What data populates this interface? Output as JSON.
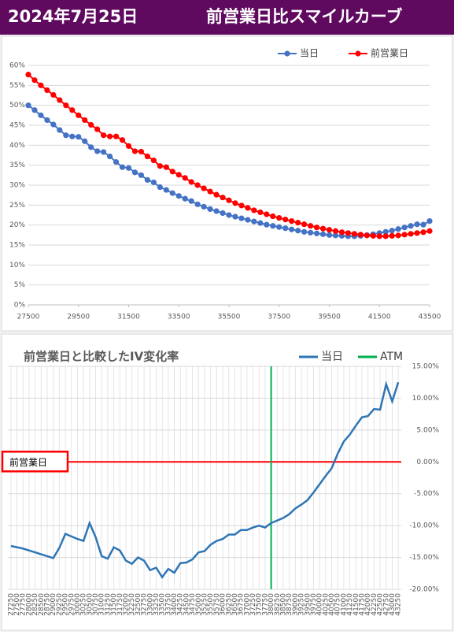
{
  "header": {
    "date": "2024年7月25日",
    "title": "前営業日比スマイルカーブ"
  },
  "chart_data": [
    {
      "type": "line",
      "markers": true,
      "legend": "top-right",
      "grid": true,
      "y_axis_side": "left",
      "x": [
        27500,
        27750,
        28000,
        28250,
        28500,
        28750,
        29000,
        29250,
        29500,
        29750,
        30000,
        30250,
        30500,
        30750,
        31000,
        31250,
        31500,
        31750,
        32000,
        32250,
        32500,
        32750,
        33000,
        33250,
        33500,
        33750,
        34000,
        34250,
        34500,
        34750,
        35000,
        35250,
        35500,
        35750,
        36000,
        36250,
        36500,
        36750,
        37000,
        37250,
        37500,
        37750,
        38000,
        38250,
        38500,
        38750,
        39000,
        39250,
        39500,
        39750,
        40000,
        40250,
        40500,
        40750,
        41000,
        41250,
        41500,
        41750,
        42000,
        42250,
        42500,
        42750,
        43000,
        43250,
        43500
      ],
      "series": [
        {
          "name": "当日",
          "color": "#4472c4",
          "values": [
            50,
            48.8,
            47.5,
            46.3,
            45.2,
            43.8,
            42.5,
            42.2,
            42.1,
            41,
            39.5,
            38.5,
            38.3,
            37.2,
            35.8,
            34.5,
            34.3,
            33.2,
            32.5,
            31.3,
            30.7,
            29.5,
            28.8,
            28,
            27.3,
            26.6,
            26,
            25.2,
            24.6,
            24,
            23.5,
            23,
            22.5,
            22.1,
            21.7,
            21.3,
            20.9,
            20.5,
            20.1,
            19.8,
            19.5,
            19.2,
            18.9,
            18.6,
            18.3,
            18.1,
            17.9,
            17.7,
            17.5,
            17.4,
            17.3,
            17.2,
            17.2,
            17.3,
            17.5,
            17.7,
            18,
            18.3,
            18.6,
            19,
            19.4,
            19.8,
            20.2,
            20.1,
            21
          ]
        },
        {
          "name": "前営業日",
          "color": "#ff0000",
          "values": [
            57.7,
            56.3,
            55,
            53.8,
            52.6,
            51.3,
            50,
            48.8,
            47.5,
            46.3,
            45.1,
            44,
            42.5,
            42.2,
            42.2,
            41.3,
            39.8,
            38.5,
            38.4,
            37.2,
            36.2,
            34.8,
            34.5,
            33.4,
            32.6,
            31.8,
            30.8,
            30,
            29.2,
            28.4,
            27.6,
            26.9,
            26.2,
            25.5,
            24.9,
            24.3,
            23.7,
            23.2,
            22.7,
            22.2,
            21.8,
            21.4,
            21,
            20.6,
            20.2,
            19.8,
            19.4,
            19.1,
            18.8,
            18.5,
            18.2,
            18,
            17.8,
            17.6,
            17.4,
            17.3,
            17.2,
            17.2,
            17.3,
            17.4,
            17.6,
            17.8,
            18,
            18.2,
            18.5
          ]
        }
      ],
      "xlim": [
        27500,
        43500
      ],
      "xticks": [
        27500,
        29500,
        31500,
        33500,
        35500,
        37500,
        39500,
        41500,
        43500
      ],
      "ylim": [
        0,
        60
      ],
      "yticks": [
        {
          "value": 0,
          "label": "0%"
        },
        {
          "value": 5,
          "label": "5%"
        },
        {
          "value": 10,
          "label": "10%"
        },
        {
          "value": 15,
          "label": "15%"
        },
        {
          "value": 20,
          "label": "20%"
        },
        {
          "value": 25,
          "label": "25%"
        },
        {
          "value": 30,
          "label": "30%"
        },
        {
          "value": 35,
          "label": "35%"
        },
        {
          "value": 40,
          "label": "40%"
        },
        {
          "value": 45,
          "label": "45%"
        },
        {
          "value": 50,
          "label": "50%"
        },
        {
          "value": 55,
          "label": "55%"
        },
        {
          "value": 60,
          "label": "60%"
        }
      ]
    },
    {
      "type": "line",
      "markers": false,
      "legend": "top-right",
      "grid": true,
      "y_axis_side": "right",
      "title": "前営業日と比較したIV変化率",
      "categories": [
        "27250",
        "27500",
        "27750",
        "28000",
        "28250",
        "28500",
        "28750",
        "29000",
        "29250",
        "29500",
        "29750",
        "30000",
        "30250",
        "30500",
        "30750",
        "31000",
        "31250",
        "31500",
        "31750",
        "32000",
        "32250",
        "32500",
        "32750",
        "33000",
        "33250",
        "33500",
        "33750",
        "34000",
        "34250",
        "34500",
        "34750",
        "35000",
        "35250",
        "35500",
        "35750",
        "36000",
        "36250",
        "36500",
        "36750",
        "37000",
        "37250",
        "37500",
        "37750",
        "38000",
        "38250",
        "38500",
        "38750",
        "39000",
        "39250",
        "39500",
        "39750",
        "40000",
        "40250",
        "40500",
        "40750",
        "41000",
        "41250",
        "41500",
        "41750",
        "42000",
        "42250",
        "42500",
        "42750",
        "43000",
        "43250"
      ],
      "series": [
        {
          "name": "当日",
          "color": "#2e75b6",
          "values": [
            -13.2,
            -13.4,
            -13.6,
            -13.9,
            -14.2,
            -14.5,
            -14.8,
            -15.1,
            -13.5,
            -11.3,
            -11.7,
            -12.1,
            -12.4,
            -9.6,
            -11.8,
            -14.8,
            -15.2,
            -13.4,
            -13.9,
            -15.5,
            -16,
            -15,
            -15.5,
            -17,
            -16.6,
            -18.1,
            -16.8,
            -17.4,
            -15.9,
            -15.8,
            -15.3,
            -14.2,
            -14,
            -13,
            -12.4,
            -12.1,
            -11.4,
            -11.4,
            -10.7,
            -10.7,
            -10.3,
            -10,
            -10.3,
            -9.6,
            -9.2,
            -8.8,
            -8.2,
            -7.3,
            -6.7,
            -6,
            -4.8,
            -3.5,
            -2.2,
            -1,
            1.3,
            3.2,
            4.3,
            5.7,
            7,
            7.2,
            8.3,
            8.2,
            12.2,
            9.5,
            12.5
          ]
        }
      ],
      "atm": {
        "name": "ATM",
        "color": "#00b050",
        "category": "38000"
      },
      "reference_line": {
        "label": "前営業日",
        "value": 0,
        "color": "#ff0000"
      },
      "ylim": [
        -20,
        15
      ],
      "yticks": [
        {
          "value": -20,
          "label": "-20.00%"
        },
        {
          "value": -15,
          "label": "-15.00%"
        },
        {
          "value": -10,
          "label": "-10.00%"
        },
        {
          "value": -5,
          "label": "-5.00%"
        },
        {
          "value": 0,
          "label": "0.00%"
        },
        {
          "value": 5,
          "label": "5.00%"
        },
        {
          "value": 10,
          "label": "10.00%"
        },
        {
          "value": 15,
          "label": "15.00%"
        }
      ]
    }
  ]
}
